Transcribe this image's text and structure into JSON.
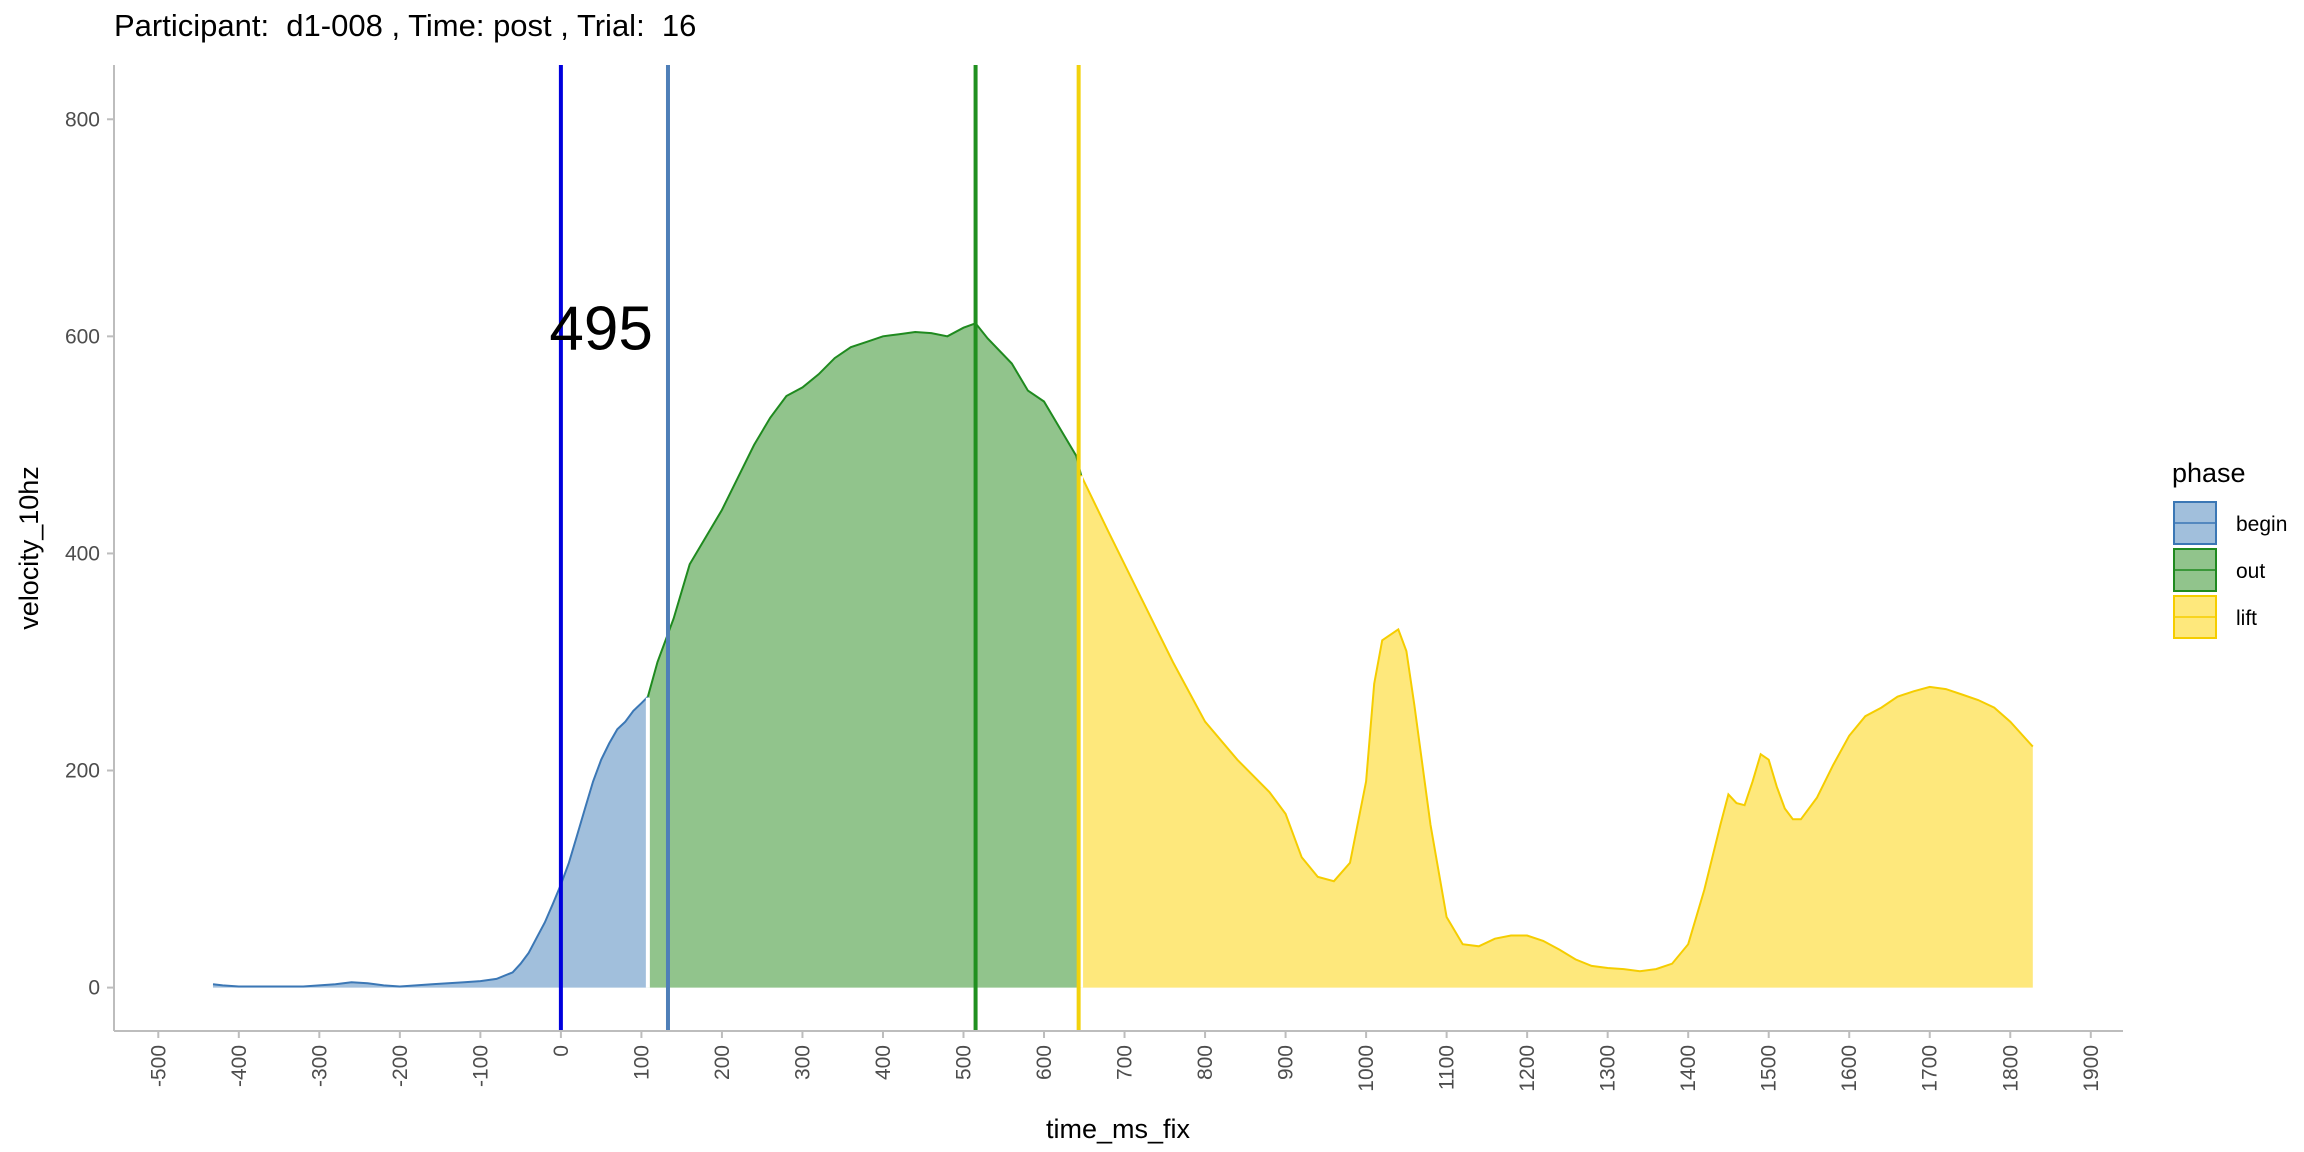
{
  "chart_data": {
    "type": "area",
    "title": "Participant:  d1-008 , Time: post , Trial:  16",
    "xlabel": "time_ms_fix",
    "ylabel": "velocity_10hz",
    "xlim": [
      -555,
      1940
    ],
    "ylim": [
      -40,
      850
    ],
    "x_ticks": [
      -500,
      -400,
      -300,
      -200,
      -100,
      0,
      100,
      200,
      300,
      400,
      500,
      600,
      700,
      800,
      900,
      1000,
      1100,
      1200,
      1300,
      1400,
      1500,
      1600,
      1700,
      1800,
      1900
    ],
    "x_tick_labels": [
      "-500",
      "-400",
      "-300",
      "-200",
      "-100",
      "0",
      "100",
      "200",
      "300",
      "400",
      "500",
      "600",
      "700",
      "800",
      "900",
      "1000",
      "1100",
      "1200",
      "1300",
      "1400",
      "1500",
      "1600",
      "1700",
      "1800",
      "1900"
    ],
    "y_ticks": [
      0,
      200,
      400,
      600,
      800
    ],
    "y_tick_labels": [
      "0",
      "200",
      "400",
      "600",
      "800"
    ],
    "legend": {
      "title": "phase",
      "position": "right",
      "entries": [
        {
          "label": "begin",
          "fill": "#a1bfdc",
          "line": "#3b77b5"
        },
        {
          "label": "out",
          "fill": "#91c48c",
          "line": "#1f8a1f"
        },
        {
          "label": "lift",
          "fill": "#fee87c",
          "line": "#f5cd00"
        }
      ]
    },
    "series": [
      {
        "name": "begin",
        "fill": "#a1bfdc",
        "line": "#3b77b5",
        "x": [
          -432,
          -420,
          -400,
          -380,
          -360,
          -340,
          -320,
          -300,
          -280,
          -260,
          -240,
          -220,
          -200,
          -180,
          -160,
          -140,
          -120,
          -100,
          -80,
          -60,
          -50,
          -40,
          -30,
          -20,
          -10,
          0,
          10,
          20,
          30,
          40,
          50,
          60,
          70,
          80,
          90,
          100,
          108
        ],
        "y": [
          3,
          2,
          1,
          1,
          1,
          1,
          1,
          2,
          3,
          5,
          4,
          2,
          1,
          2,
          3,
          4,
          5,
          6,
          8,
          14,
          22,
          32,
          46,
          60,
          77,
          95,
          115,
          140,
          165,
          190,
          210,
          225,
          238,
          245,
          255,
          262,
          268
        ]
      },
      {
        "name": "out",
        "fill": "#91c48c",
        "line": "#1f8a1f",
        "x": [
          108,
          120,
          140,
          160,
          180,
          200,
          220,
          240,
          260,
          280,
          300,
          320,
          340,
          360,
          380,
          400,
          420,
          440,
          460,
          480,
          500,
          515,
          530,
          560,
          580,
          600,
          620,
          640,
          646
        ],
        "y": [
          268,
          300,
          340,
          390,
          415,
          440,
          470,
          500,
          525,
          545,
          553,
          565,
          580,
          590,
          595,
          600,
          602,
          604,
          603,
          600,
          608,
          612,
          598,
          575,
          550,
          540,
          515,
          490,
          472
        ]
      },
      {
        "name": "lift",
        "fill": "#fee87c",
        "line": "#f5cd00",
        "x": [
          646,
          680,
          720,
          760,
          800,
          840,
          880,
          900,
          920,
          940,
          960,
          980,
          1000,
          1010,
          1020,
          1030,
          1040,
          1050,
          1060,
          1080,
          1100,
          1120,
          1140,
          1160,
          1180,
          1200,
          1220,
          1240,
          1260,
          1280,
          1300,
          1320,
          1340,
          1360,
          1380,
          1400,
          1420,
          1440,
          1450,
          1460,
          1470,
          1480,
          1490,
          1500,
          1510,
          1520,
          1530,
          1540,
          1560,
          1580,
          1600,
          1620,
          1640,
          1660,
          1680,
          1700,
          1720,
          1740,
          1760,
          1780,
          1800,
          1828
        ],
        "y": [
          472,
          420,
          360,
          300,
          245,
          210,
          180,
          160,
          120,
          102,
          98,
          115,
          190,
          280,
          320,
          325,
          330,
          310,
          260,
          150,
          65,
          40,
          38,
          45,
          48,
          48,
          43,
          35,
          26,
          20,
          18,
          17,
          15,
          17,
          22,
          40,
          90,
          150,
          178,
          170,
          168,
          190,
          215,
          210,
          185,
          165,
          155,
          155,
          175,
          205,
          232,
          250,
          258,
          268,
          273,
          277,
          275,
          270,
          265,
          258,
          245,
          222
        ]
      }
    ],
    "vlines": [
      {
        "name": "blue",
        "x": 0,
        "color": "#0000dd"
      },
      {
        "name": "steelblue",
        "x": 133,
        "color": "#4f7fb8"
      },
      {
        "name": "green",
        "x": 515,
        "color": "#20901f"
      },
      {
        "name": "gold",
        "x": 643,
        "color": "#f2d20d"
      }
    ],
    "annotation": {
      "text": "495",
      "x": 50,
      "y": 608
    }
  }
}
